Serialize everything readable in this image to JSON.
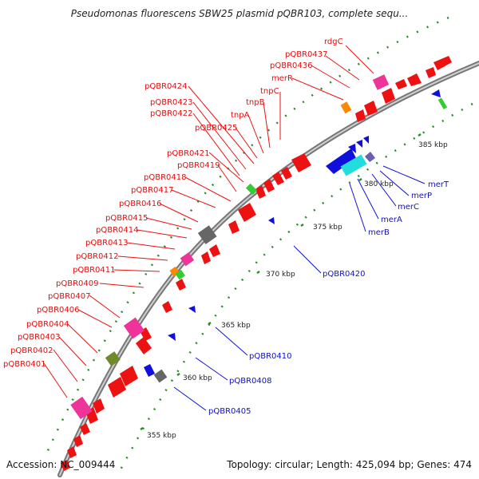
{
  "title": "Pseudomonas fluorescens SBW25 plasmid pQBR103, complete sequ...",
  "footer": {
    "accession": "Accession: NC_009444",
    "topology": "Topology: circular; Length: 425,094 bp; Genes: 474"
  },
  "ticks": [
    "355 kbp",
    "360 kbp",
    "365 kbp",
    "370 kbp",
    "375 kbp",
    "380 kbp",
    "385 kbp"
  ],
  "forward_labels": [
    "rdgC",
    "pQBR0437",
    "pQBR0436",
    "merR",
    "tnpC",
    "tnpB",
    "tnpA",
    "pQBR0424",
    "pQBR0423",
    "pQBR0422",
    "pQBR0425",
    "pQBR0421",
    "pQBR0419",
    "pQBR0418",
    "pQBR0417",
    "pQBR0416",
    "pQBR0415",
    "pQBR0414",
    "pQBR0413",
    "pQBR0412",
    "pQBR0411",
    "pQBR0409",
    "pQBR0407",
    "pQBR0406",
    "pQBR0404",
    "pQBR0403",
    "pQBR0402",
    "pQBR0401"
  ],
  "reverse_labels": [
    "merT",
    "merP",
    "merC",
    "merA",
    "merB",
    "pQBR0420",
    "pQBR0410",
    "pQBR0408",
    "pQBR0405"
  ],
  "colors": {
    "forward_gene": "#ee1111",
    "reverse_gene": "#1010dd",
    "mobile_element": "#ee3399",
    "regulator": "#ff8800",
    "rna": "#33cc33",
    "unknown": "#666666",
    "transport": "#22dddd",
    "olive": "#6f8a2a",
    "backbone": "#999999",
    "dotted_ring": "#2a8a2a"
  }
}
